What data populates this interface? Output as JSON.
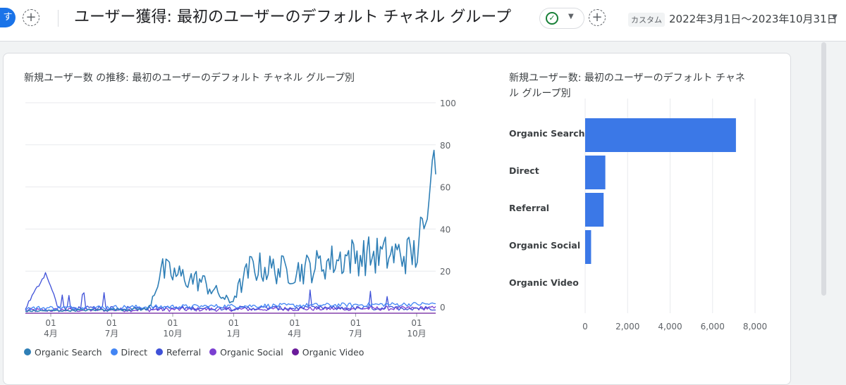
{
  "header": {
    "segment_badge": "す",
    "add_icon": "+",
    "title": "ユーザー獲得: 最初のユーザーのデフォルト チャネル グループ",
    "status_icon": "check-circle-icon",
    "date_kind": "カスタム",
    "date_range": "2022年3月1日～2023年10月31日"
  },
  "colors": {
    "organic_search": "#2f7fb6",
    "direct": "#4285f4",
    "referral": "#3f51d8",
    "organic_social": "#7b3fd1",
    "organic_video": "#6a1b9a",
    "bar": "#3b78e7"
  },
  "line_panel": {
    "title": "新規ユーザー数 の推移: 最初のユーザーのデフォルト チャネル グループ別"
  },
  "bar_panel": {
    "title_line1": "新規ユーザー数: 最初のユーザーのデフォルト チャネ",
    "title_line2": "ル グループ別"
  },
  "chart_data": [
    {
      "type": "line",
      "x_tick_labels": [
        [
          "01",
          "4月"
        ],
        [
          "01",
          "7月"
        ],
        [
          "01",
          "10月"
        ],
        [
          "01",
          "1月"
        ],
        [
          "01",
          "4月"
        ],
        [
          "01",
          "7月"
        ],
        [
          "01",
          "10月"
        ]
      ],
      "y_ticks": [
        0,
        20,
        40,
        60,
        80,
        100
      ],
      "ylim": [
        0,
        100
      ],
      "x_range": [
        "2022-03-01",
        "2023-10-31"
      ],
      "grid": true,
      "legend_position": "bottom",
      "series": [
        {
          "name": "Organic Search",
          "color": "#2f7fb6",
          "approx_levels": [
            [
              0,
              1
            ],
            [
              0.3,
              2
            ],
            [
              0.33,
              20
            ],
            [
              0.43,
              15
            ],
            [
              0.5,
              5
            ],
            [
              0.55,
              22
            ],
            [
              0.66,
              20
            ],
            [
              0.79,
              27
            ],
            [
              0.95,
              28
            ],
            [
              0.98,
              45
            ],
            [
              0.995,
              80
            ],
            [
              1,
              66
            ]
          ]
        },
        {
          "name": "Direct",
          "color": "#4285f4",
          "approx_levels": [
            [
              0,
              2
            ],
            [
              1,
              4
            ]
          ]
        },
        {
          "name": "Referral",
          "color": "#3f51d8",
          "approx_levels": [
            [
              0,
              2
            ],
            [
              0.05,
              19
            ],
            [
              0.08,
              2
            ],
            [
              1,
              2
            ]
          ]
        },
        {
          "name": "Organic Social",
          "color": "#7b3fd1",
          "approx_levels": [
            [
              0,
              1
            ],
            [
              1,
              2
            ]
          ]
        },
        {
          "name": "Organic Video",
          "color": "#6a1b9a",
          "approx_levels": [
            [
              0,
              0
            ],
            [
              1,
              0
            ]
          ]
        }
      ]
    },
    {
      "type": "bar",
      "orientation": "horizontal",
      "categories": [
        "Organic Search",
        "Direct",
        "Referral",
        "Organic Social",
        "Organic Video"
      ],
      "values": [
        7100,
        950,
        870,
        280,
        0
      ],
      "x_ticks": [
        0,
        2000,
        4000,
        6000,
        8000
      ],
      "x_tick_labels": [
        "0",
        "2,000",
        "4,000",
        "6,000",
        "8,000"
      ],
      "xlim": [
        0,
        8000
      ],
      "grid": true
    }
  ]
}
